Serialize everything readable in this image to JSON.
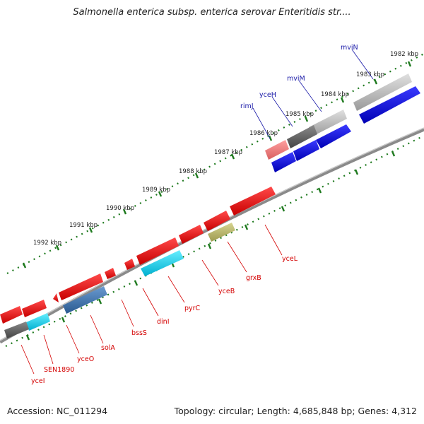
{
  "title": "Salmonella enterica subsp. enterica serovar Enteritidis str....",
  "footer": {
    "accession": "Accession: NC_011294",
    "summary": "Topology: circular; Length: 4,685,848 bp; Genes: 4,312"
  },
  "colors": {
    "backbone": "#7a7a7a",
    "ticks": "#1f7a1f",
    "red": "#ee1111",
    "blue": "#0a0adf",
    "label_red": "#d40000",
    "label_blue": "#1a1aa8"
  },
  "scale": {
    "kbp_labels": [
      "1982 kbp",
      "1983 kbp",
      "1984 kbp",
      "1985 kbp",
      "1986 kbp",
      "1987 kbp",
      "1988 kbp",
      "1989 kbp",
      "1990 kbp",
      "1991 kbp",
      "1992 kbp"
    ]
  },
  "genes_forward": [
    {
      "name": "mviN",
      "color": "#c4c4c4"
    },
    {
      "name": "mviM",
      "color": "#c4c4c4"
    },
    {
      "name": "yceH",
      "color": "#666666"
    },
    {
      "name": "rimJ",
      "color": "#f08080"
    }
  ],
  "genes_reverse": [
    {
      "name": "yceI",
      "color": "#ee1111"
    },
    {
      "name": "SEN1890",
      "color": "#ee1111"
    },
    {
      "name": "yceO",
      "color": "#ee1111"
    },
    {
      "name": "solA",
      "color": "#ee1111"
    },
    {
      "name": "bssS",
      "color": "#ee1111"
    },
    {
      "name": "dinI",
      "color": "#ee1111"
    },
    {
      "name": "pyrC",
      "color": "#ee1111"
    },
    {
      "name": "yceB",
      "color": "#ee1111"
    },
    {
      "name": "grxB",
      "color": "#ee1111"
    },
    {
      "name": "yceL",
      "color": "#ee1111"
    }
  ]
}
